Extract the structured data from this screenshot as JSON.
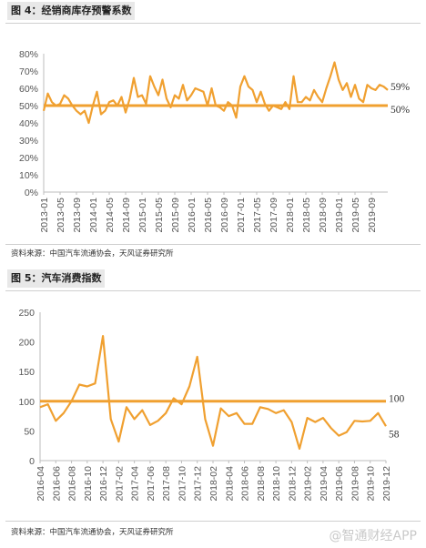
{
  "chart_data": [
    {
      "type": "line",
      "title": "图 4：经销商库存预警系数",
      "source": "资料来源：中国汽车流通协会，天风证券研究所",
      "ylim": [
        0,
        80
      ],
      "y_ticks": [
        "0%",
        "10%",
        "20%",
        "30%",
        "40%",
        "50%",
        "60%",
        "70%",
        "80%"
      ],
      "x_ticks": [
        "2013-01",
        "2013-05",
        "2013-09",
        "2014-01",
        "2014-05",
        "2014-09",
        "2015-01",
        "2015-05",
        "2015-09",
        "2016-01",
        "2016-05",
        "2016-09",
        "2017-01",
        "2017-05",
        "2017-09",
        "2018-01",
        "2018-05",
        "2018-09",
        "2019-01",
        "2019-05",
        "2019-09"
      ],
      "series": [
        {
          "values": [
            47,
            57,
            52,
            50,
            51,
            56,
            54,
            50,
            47,
            45,
            47,
            40,
            50,
            58,
            45,
            47,
            52,
            53,
            50,
            55,
            46,
            54,
            66,
            55,
            56,
            51,
            67,
            61,
            56,
            65,
            54,
            49,
            56,
            54,
            62,
            53,
            56,
            60,
            59,
            58,
            50,
            60,
            50,
            49,
            47,
            52,
            50,
            43,
            61,
            67,
            61,
            59,
            52,
            58,
            51,
            47,
            50,
            49,
            48,
            52,
            48,
            67,
            52,
            52,
            55,
            53,
            59,
            55,
            52,
            60,
            67,
            75,
            65,
            59,
            63,
            55,
            62,
            54,
            52,
            62,
            60,
            59,
            62,
            61,
            59
          ]
        },
        {
          "values": [
            50,
            50,
            50,
            50,
            50,
            50,
            50,
            50,
            50,
            50,
            50,
            50,
            50,
            50,
            50,
            50,
            50,
            50,
            50,
            50,
            50,
            50,
            50,
            50,
            50,
            50,
            50,
            50,
            50,
            50,
            50,
            50,
            50,
            50,
            50,
            50,
            50,
            50,
            50,
            50,
            50,
            50,
            50,
            50,
            50,
            50,
            50,
            50,
            50,
            50,
            50,
            50,
            50,
            50,
            50,
            50,
            50,
            50,
            50,
            50,
            50,
            50,
            50,
            50,
            50,
            50,
            50,
            50,
            50,
            50,
            50,
            50,
            50,
            50,
            50,
            50,
            50,
            50,
            50,
            50,
            50,
            50,
            50,
            50,
            50
          ]
        }
      ],
      "annotations": [
        "59%",
        "50%"
      ],
      "colors": {
        "series": "#f0a030",
        "threshold": "#f0a030"
      }
    },
    {
      "type": "line",
      "title": "图 5：汽车消费指数",
      "source": "资料来源：中国汽车流通协会，天风证券研究所",
      "ylim": [
        0,
        250
      ],
      "y_ticks": [
        "0",
        "50",
        "100",
        "150",
        "200",
        "250"
      ],
      "x_ticks": [
        "2016-04",
        "2016-06",
        "2016-08",
        "2016-10",
        "2016-12",
        "2017-02",
        "2017-04",
        "2017-06",
        "2017-08",
        "2017-10",
        "2017-12",
        "2018-02",
        "2018-04",
        "2018-06",
        "2018-08",
        "2018-10",
        "2018-12",
        "2019-02",
        "2019-04",
        "2019-06",
        "2019-08",
        "2019-10",
        "2019-12"
      ],
      "series": [
        {
          "values": [
            90,
            95,
            67,
            80,
            100,
            128,
            125,
            130,
            210,
            70,
            32,
            90,
            70,
            85,
            60,
            67,
            80,
            105,
            95,
            125,
            175,
            70,
            25,
            88,
            75,
            80,
            62,
            62,
            90,
            87,
            80,
            85,
            65,
            20,
            72,
            65,
            72,
            55,
            42,
            48,
            67,
            66,
            67,
            80,
            58
          ]
        },
        {
          "values": [
            100,
            100,
            100,
            100,
            100,
            100,
            100,
            100,
            100,
            100,
            100,
            100,
            100,
            100,
            100,
            100,
            100,
            100,
            100,
            100,
            100,
            100,
            100,
            100,
            100,
            100,
            100,
            100,
            100,
            100,
            100,
            100,
            100,
            100,
            100,
            100,
            100,
            100,
            100,
            100,
            100,
            100,
            100,
            100,
            100
          ]
        }
      ],
      "annotations": [
        "100",
        "58"
      ],
      "colors": {
        "series": "#f0a030",
        "threshold": "#f0a030"
      }
    }
  ],
  "watermark": "@智通财经APP"
}
